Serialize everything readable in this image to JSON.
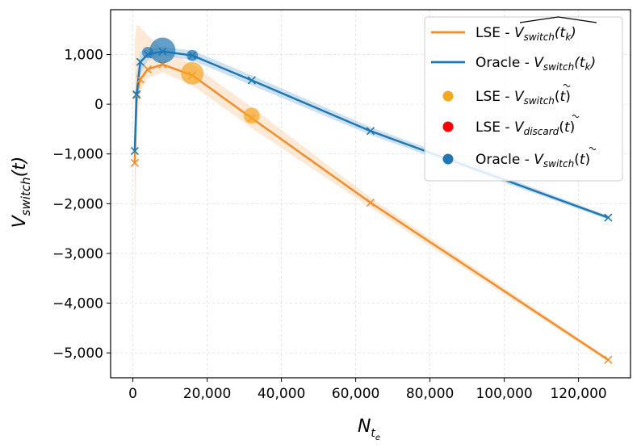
{
  "chart_data": {
    "type": "line",
    "xlabel": "N",
    "xlabel_sub": "t",
    "xlabel_subsub": "e",
    "ylabel": "V",
    "ylabel_sub": "switch",
    "ylabel_arg": "(t)",
    "xlim": [
      -6000,
      134000
    ],
    "ylim": [
      -5500,
      1900
    ],
    "xticks": [
      0,
      20000,
      40000,
      60000,
      80000,
      100000,
      120000
    ],
    "xtick_labels": [
      "0",
      "20,000",
      "40,000",
      "60,000",
      "80,000",
      "100,000",
      "120,000"
    ],
    "yticks": [
      1000,
      0,
      -1000,
      -2000,
      -3000,
      -4000,
      -5000
    ],
    "ytick_labels": [
      "1,000",
      "0",
      "−1,000",
      "−2,000",
      "−3,000",
      "−4,000",
      "−5,000"
    ],
    "grid": true,
    "legend_position": "top-right",
    "colors": {
      "lse": "#f28e2b",
      "lse_band": "#fde0c8",
      "oracle": "#1f77b4",
      "oracle_band": "#aecde6",
      "lse_point": "#f5a623",
      "discard_point": "#ff0000"
    },
    "series": [
      {
        "name": "LSE - ",
        "name_symbol": "V",
        "name_sub": "switch",
        "name_arg": "(t",
        "name_arg_sub": "k",
        "name_arg_close": ")",
        "hat": true,
        "x": [
          500,
          1000,
          2000,
          4000,
          8000,
          16000,
          32000,
          64000,
          128000
        ],
        "y": [
          -1180,
          180,
          500,
          700,
          800,
          580,
          -280,
          -1980,
          -5140
        ],
        "band_low": [
          -3650,
          -500,
          250,
          520,
          640,
          380,
          -480,
          -2080,
          -5180
        ],
        "band_high": [
          1250,
          1600,
          1560,
          1380,
          1120,
          800,
          -60,
          -1880,
          -5100
        ]
      },
      {
        "name": "Oracle - ",
        "name_symbol": "V",
        "name_sub": "switch",
        "name_arg": "(t",
        "name_arg_sub": "k",
        "name_arg_close": ")",
        "hat": false,
        "x": [
          500,
          1000,
          2000,
          4000,
          8000,
          16000,
          32000,
          64000,
          128000
        ],
        "y": [
          -940,
          200,
          850,
          1000,
          1060,
          980,
          480,
          -540,
          -2280
        ],
        "band_low": [
          -1700,
          -200,
          600,
          880,
          980,
          880,
          380,
          -620,
          -2320
        ],
        "band_high": [
          -200,
          600,
          1050,
          1120,
          1150,
          1080,
          580,
          -460,
          -2240
        ]
      }
    ],
    "scatter": [
      {
        "name": "LSE - ",
        "name_symbol": "V",
        "name_sub": "switch",
        "name_arg": "(",
        "name_arg_tilde": "t",
        "name_arg_close": ")",
        "points": [
          {
            "x": 16000,
            "y": 620,
            "size": 14
          },
          {
            "x": 32000,
            "y": -230,
            "size": 10
          }
        ]
      },
      {
        "name": "LSE - ",
        "name_symbol": "V",
        "name_sub": "discard",
        "name_arg": "(",
        "name_arg_tilde": "t",
        "name_arg_close": ")",
        "points": []
      },
      {
        "name": "Oracle - ",
        "name_symbol": "V",
        "name_sub": "switch",
        "name_arg": "(",
        "name_arg_tilde": "t",
        "name_arg_close": ")",
        "points": [
          {
            "x": 4000,
            "y": 1040,
            "size": 7
          },
          {
            "x": 8000,
            "y": 1080,
            "size": 16
          },
          {
            "x": 16000,
            "y": 980,
            "size": 7
          }
        ]
      }
    ]
  }
}
